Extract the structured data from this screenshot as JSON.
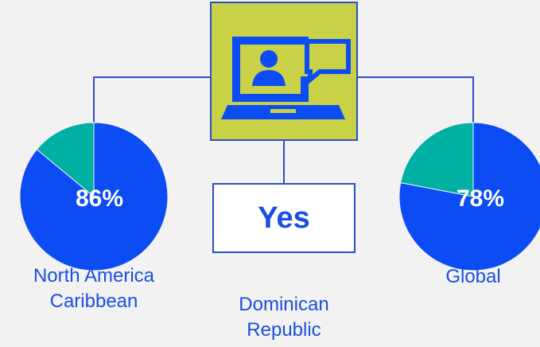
{
  "chart_data": [
    {
      "type": "pie",
      "title": "North America Caribbean",
      "values": [
        86,
        14
      ],
      "value_labels": [
        "86%",
        null
      ],
      "colors": [
        "#0b4cf5",
        "#00b0a3"
      ]
    },
    {
      "type": "pie",
      "title": "Global",
      "values": [
        78,
        22
      ],
      "value_labels": [
        "78%",
        null
      ],
      "colors": [
        "#0b4cf5",
        "#00b0a3"
      ]
    }
  ],
  "center": {
    "answer": "Yes",
    "caption": "Dominican Republic"
  }
}
